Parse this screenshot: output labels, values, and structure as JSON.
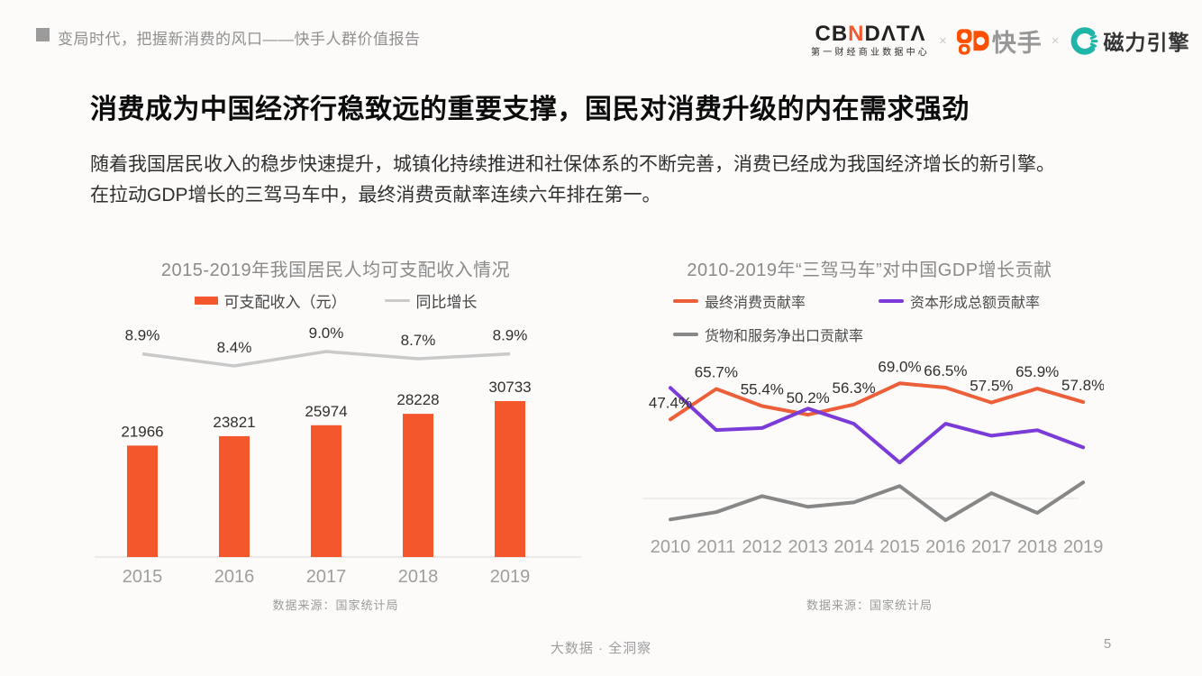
{
  "header": {
    "report_title": "变局时代，把握新消费的风口——快手人群价值报告",
    "logos": {
      "cbndata_cb": "CB",
      "cbndata_n": "N",
      "cbndata_data": "DΛTΛ",
      "cbndata_subtitle": "第一财经商业数据中心",
      "separator": "×",
      "kuaishou_label": "快手",
      "cili_label": "磁力引擎"
    }
  },
  "title": "消费成为中国经济行稳致远的重要支撑，国民对消费升级的内在需求强劲",
  "body_line1": "随着我国居民收入的稳步快速提升，城镇化持续推进和社保体系的不断完善，消费已经成为我国经济增长的新引擎。",
  "body_line2": "在拉动GDP增长的三驾马车中，最终消费贡献率连续六年排在第一。",
  "footer": {
    "tagline": "大数据 · 全洞察",
    "page_number": "5"
  },
  "chart_data": [
    {
      "type": "bar",
      "title": "2015-2019年我国居民人均可支配收入情况",
      "categories": [
        "2015",
        "2016",
        "2017",
        "2018",
        "2019"
      ],
      "series": [
        {
          "name": "可支配收入（元）",
          "type": "bar",
          "color": "#f4572c",
          "values": [
            21966,
            23821,
            25974,
            28228,
            30733
          ]
        },
        {
          "name": "同比增长",
          "type": "line",
          "color": "#c9c9c9",
          "unit": "%",
          "values": [
            8.9,
            8.4,
            9.0,
            8.7,
            8.9
          ]
        }
      ],
      "legend_position": "top",
      "grid": false,
      "source": "数据来源：国家统计局"
    },
    {
      "type": "line",
      "title": "2010-2019年“三驾马车”对中国GDP增长贡献",
      "categories": [
        "2010",
        "2011",
        "2012",
        "2013",
        "2014",
        "2015",
        "2016",
        "2017",
        "2018",
        "2019"
      ],
      "unit": "%",
      "series": [
        {
          "name": "最终消费贡献率",
          "color": "#ec5f38",
          "values": [
            47.4,
            65.7,
            55.4,
            50.2,
            56.3,
            69.0,
            66.5,
            57.5,
            65.9,
            57.8
          ],
          "labels_shown": true
        },
        {
          "name": "资本形成总额贡献率",
          "color": "#7b3bd8",
          "values": [
            66.3,
            41.0,
            42.2,
            53.9,
            44.8,
            21.5,
            44.8,
            37.6,
            40.9,
            30.6
          ],
          "estimated_from_plot": true
        },
        {
          "name": "货物和服务净出口贡献率",
          "color": "#878787",
          "values": [
            -12.6,
            -8.2,
            1.4,
            -5.0,
            -2.4,
            7.4,
            -13.0,
            3.2,
            -8.7,
            9.6
          ],
          "estimated_from_plot": true
        }
      ],
      "zero_line": true,
      "legend_position": "top",
      "grid": false,
      "source": "数据来源：国家统计局"
    }
  ]
}
